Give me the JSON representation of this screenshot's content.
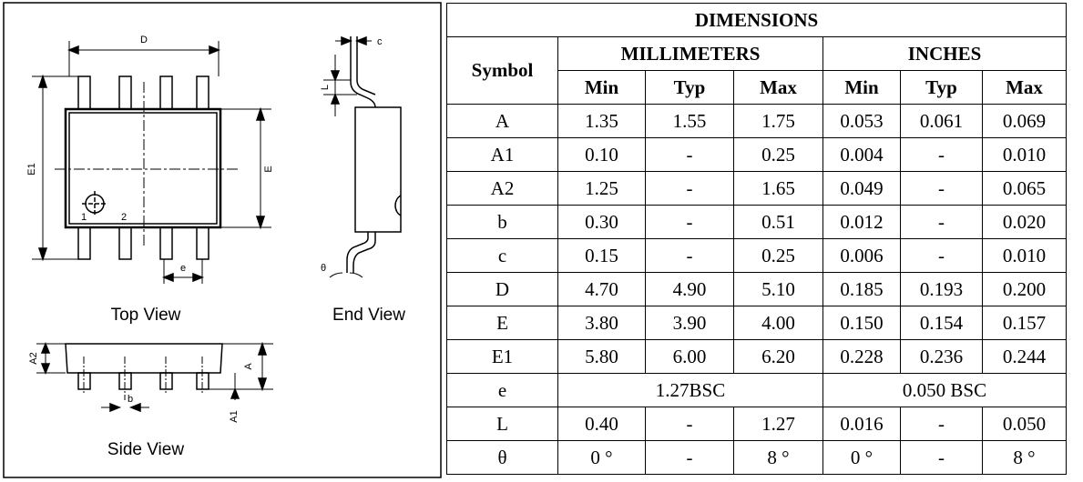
{
  "diagram": {
    "labels": {
      "D": "D",
      "E": "E",
      "E1": "E1",
      "e": "e",
      "c": "c",
      "L": "L",
      "theta": "θ",
      "A": "A",
      "A1": "A1",
      "A2": "A2",
      "b": "b",
      "pin1": "1",
      "pin2": "2",
      "top_view": "Top View",
      "end_view": "End View",
      "side_view": "Side View"
    }
  },
  "table": {
    "title": "DIMENSIONS",
    "symbol_header": "Symbol",
    "groups": [
      "MILLIMETERS",
      "INCHES"
    ],
    "subheaders": [
      "Min",
      "Typ",
      "Max",
      "Min",
      "Typ",
      "Max"
    ],
    "rows": [
      [
        "A",
        "1.35",
        "1.55",
        "1.75",
        "0.053",
        "0.061",
        "0.069"
      ],
      [
        "A1",
        "0.10",
        "-",
        "0.25",
        "0.004",
        "-",
        "0.010"
      ],
      [
        "A2",
        "1.25",
        "-",
        "1.65",
        "0.049",
        "-",
        "0.065"
      ],
      [
        "b",
        "0.30",
        "-",
        "0.51",
        "0.012",
        "-",
        "0.020"
      ],
      [
        "c",
        "0.15",
        "-",
        "0.25",
        "0.006",
        "-",
        "0.010"
      ],
      [
        "D",
        "4.70",
        "4.90",
        "5.10",
        "0.185",
        "0.193",
        "0.200"
      ],
      [
        "E",
        "3.80",
        "3.90",
        "4.00",
        "0.150",
        "0.154",
        "0.157"
      ],
      [
        "E1",
        "5.80",
        "6.00",
        "6.20",
        "0.228",
        "0.236",
        "0.244"
      ],
      [
        "e",
        "1.27BSC",
        "0.050 BSC"
      ],
      [
        "L",
        "0.40",
        "-",
        "1.27",
        "0.016",
        "-",
        "0.050"
      ],
      [
        "θ",
        "0 °",
        "-",
        "8 °",
        "0 °",
        "-",
        "8 °"
      ]
    ]
  }
}
